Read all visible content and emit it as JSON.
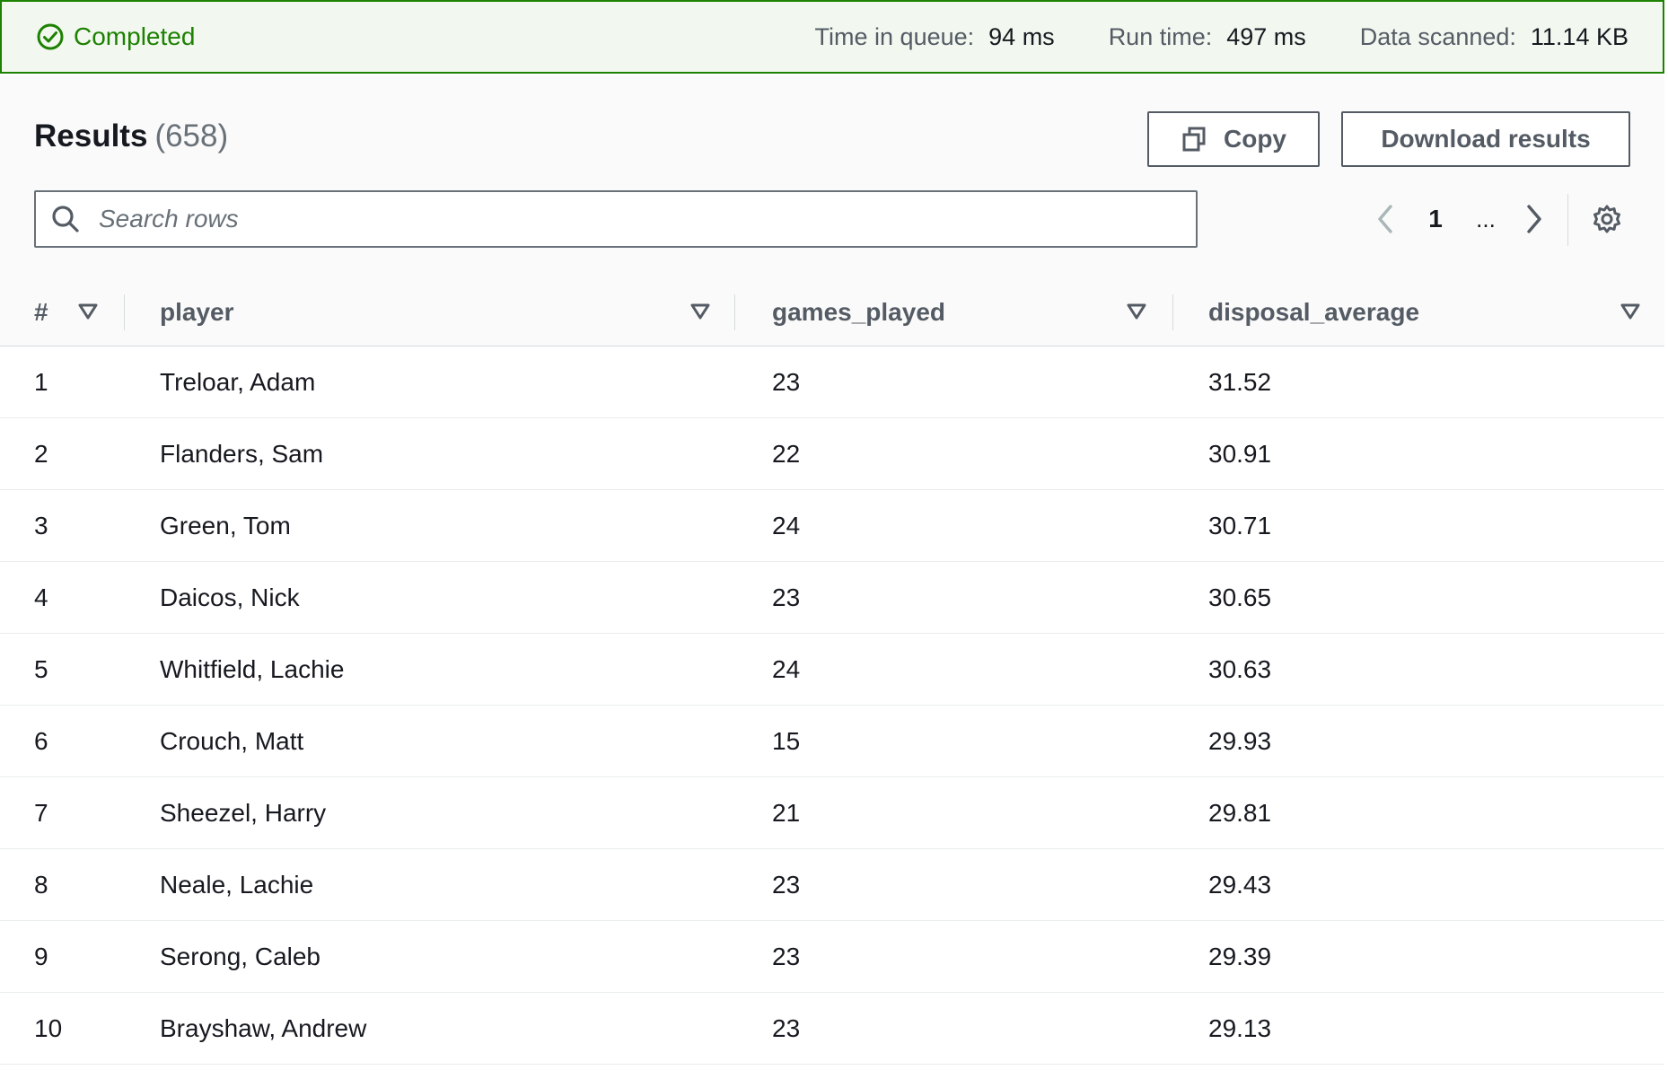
{
  "status": {
    "text": "Completed",
    "color": "#1d8102",
    "metrics": [
      {
        "label": "Time in queue:",
        "value": "94 ms"
      },
      {
        "label": "Run time:",
        "value": "497 ms"
      },
      {
        "label": "Data scanned:",
        "value": "11.14 KB"
      }
    ]
  },
  "results": {
    "title": "Results",
    "count": "(658)",
    "copy_label": "Copy",
    "download_label": "Download results"
  },
  "search": {
    "placeholder": "Search rows"
  },
  "pager": {
    "current_page": "1",
    "ellipsis": "..."
  },
  "table": {
    "columns": [
      "#",
      "player",
      "games_played",
      "disposal_average"
    ],
    "rows": [
      [
        "1",
        "Treloar, Adam",
        "23",
        "31.52"
      ],
      [
        "2",
        "Flanders, Sam",
        "22",
        "30.91"
      ],
      [
        "3",
        "Green, Tom",
        "24",
        "30.71"
      ],
      [
        "4",
        "Daicos, Nick",
        "23",
        "30.65"
      ],
      [
        "5",
        "Whitfield, Lachie",
        "24",
        "30.63"
      ],
      [
        "6",
        "Crouch, Matt",
        "15",
        "29.93"
      ],
      [
        "7",
        "Sheezel, Harry",
        "21",
        "29.81"
      ],
      [
        "8",
        "Neale, Lachie",
        "23",
        "29.43"
      ],
      [
        "9",
        "Serong, Caleb",
        "23",
        "29.39"
      ],
      [
        "10",
        "Brayshaw, Andrew",
        "23",
        "29.13"
      ]
    ]
  }
}
